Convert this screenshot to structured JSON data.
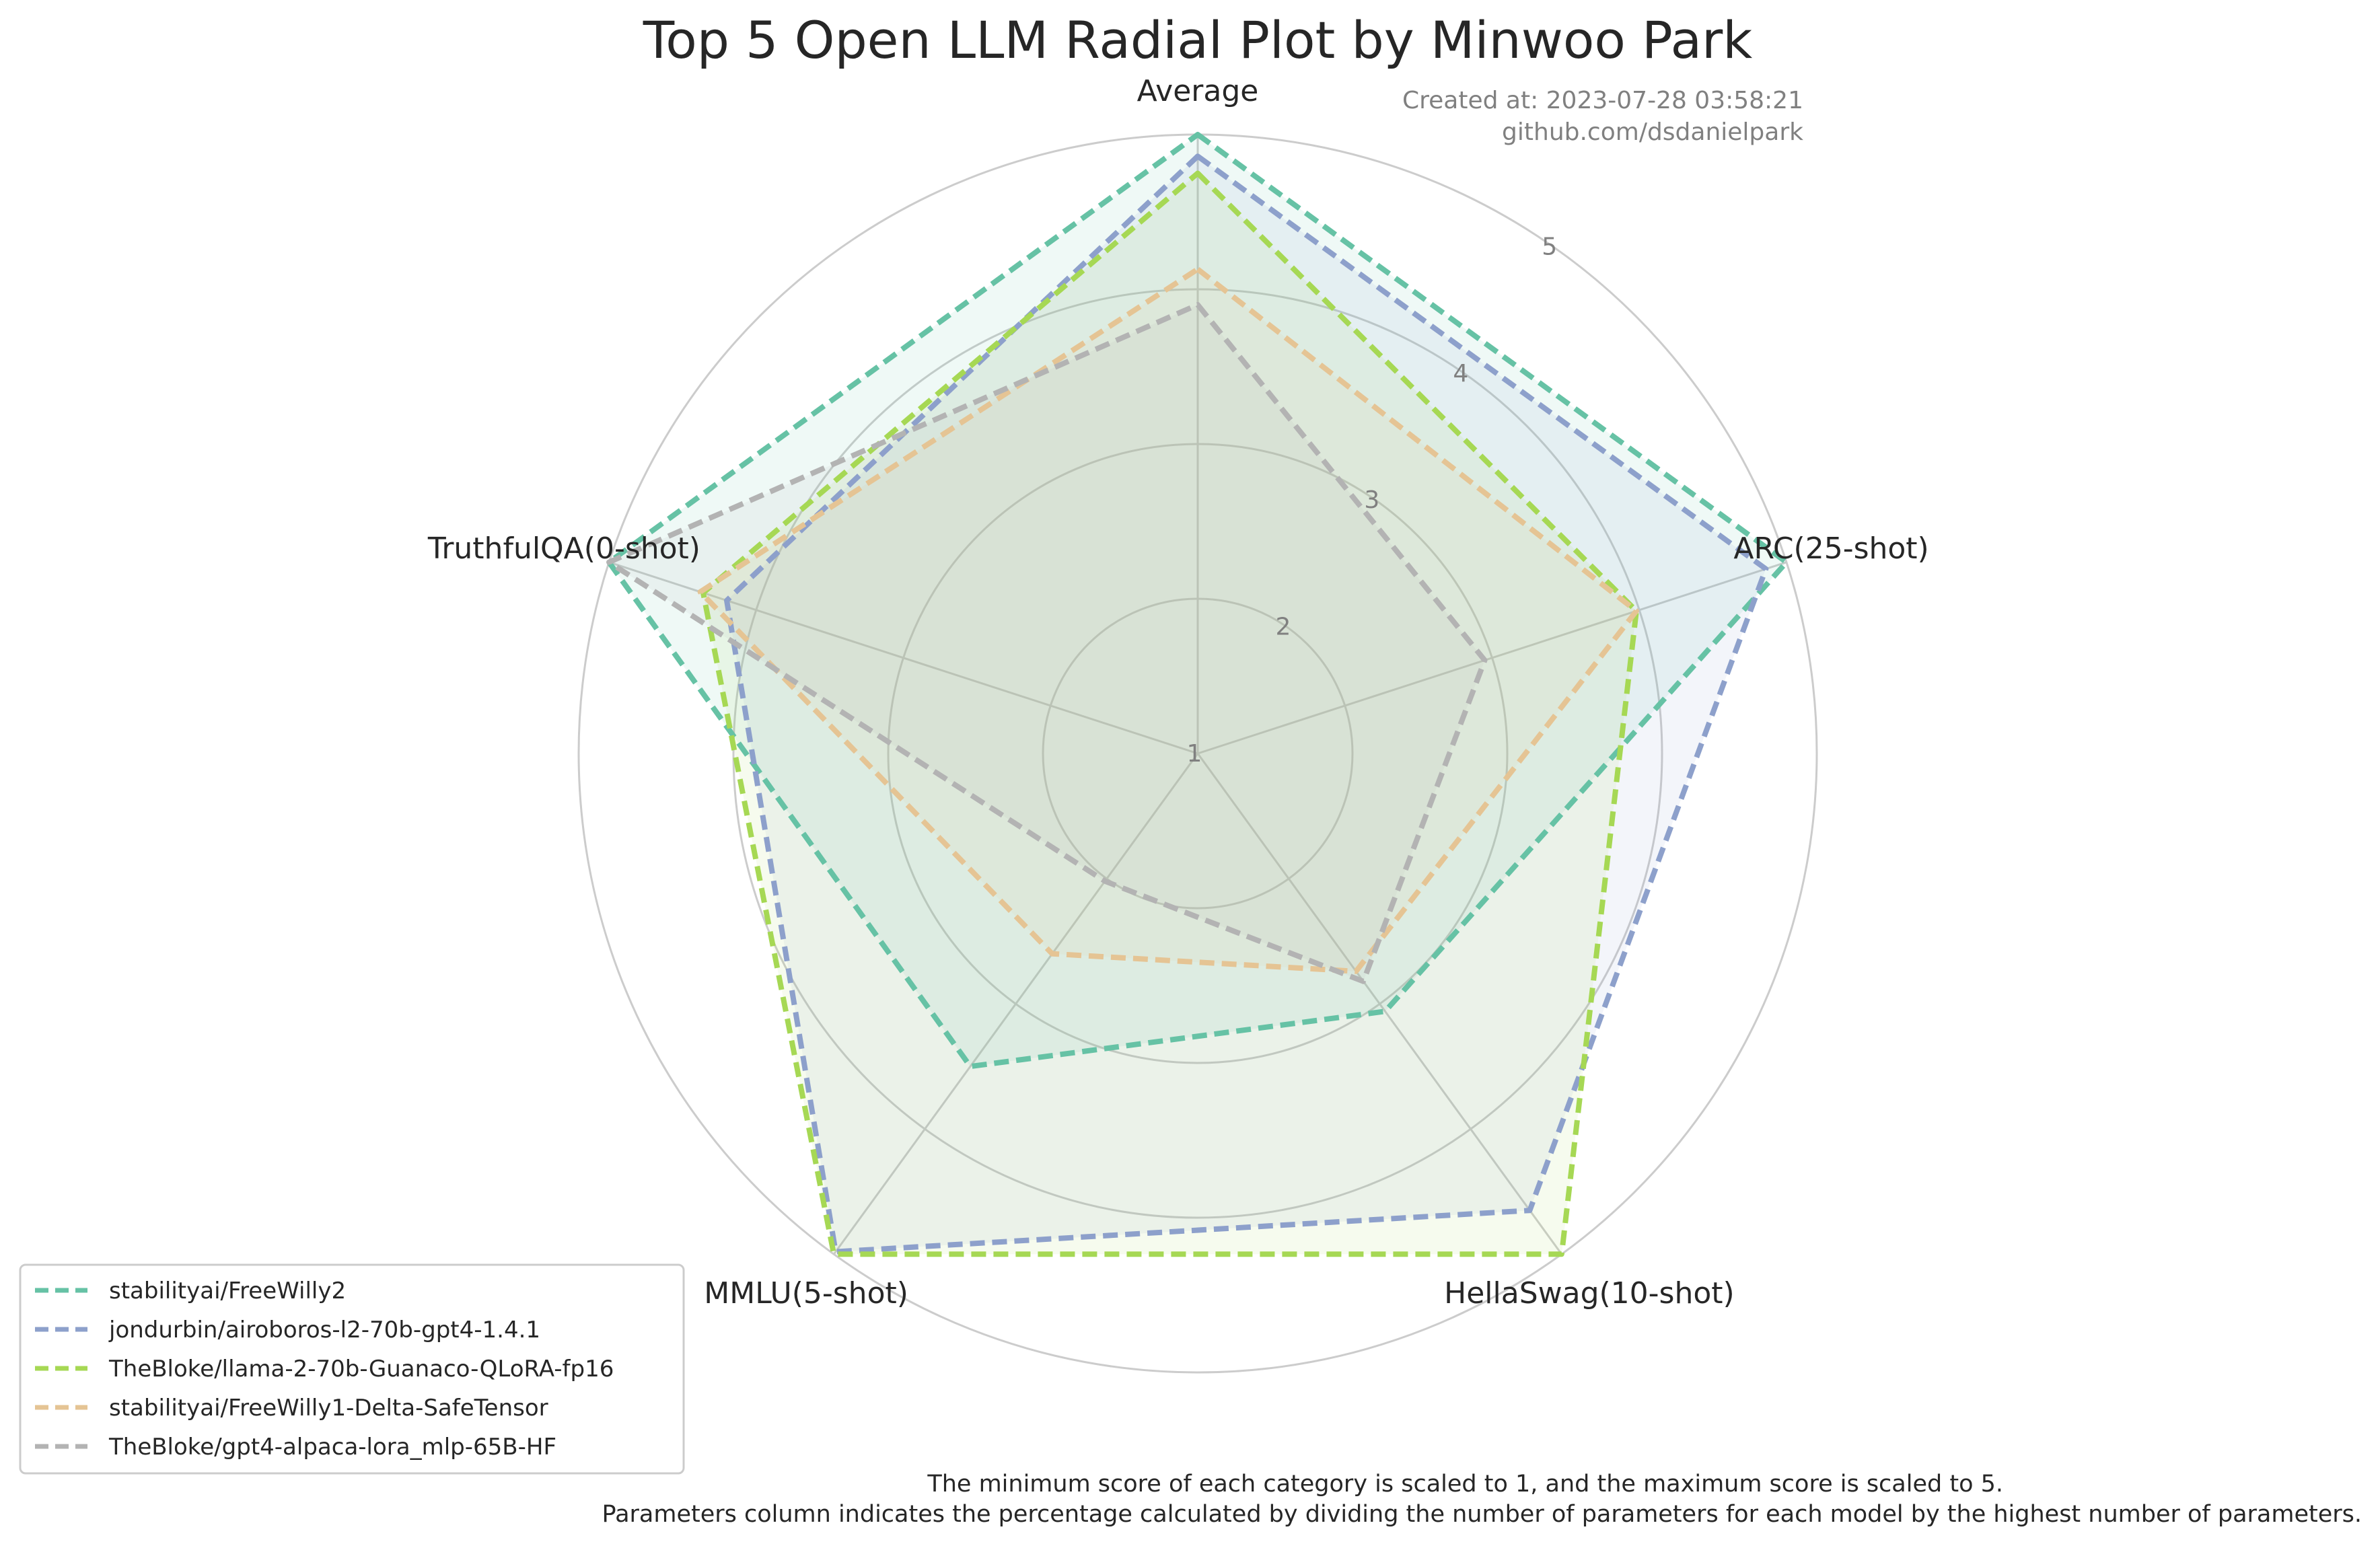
{
  "chart_data": {
    "type": "radar",
    "title": "Top 5 Open LLM Radial Plot by Minwoo Park",
    "meta": {
      "created_at": "Created at: 2023-07-28 03:58:21",
      "github": "github.com/dsdanielpark"
    },
    "categories": [
      "Average",
      "ARC(25-shot)",
      "HellaSwag(10-shot)",
      "MMLU(5-shot)",
      "TruthfulQA(0-shot)"
    ],
    "r_ticks": [
      "1",
      "2",
      "3",
      "4",
      "5"
    ],
    "r_range": [
      1,
      5
    ],
    "grid": true,
    "legend_position": "bottom-left",
    "series": [
      {
        "name": "stabilityai/FreeWilly2",
        "color": "#66c2a5",
        "values": [
          5.0,
          5.0,
          3.06,
          3.5,
          5.0
        ]
      },
      {
        "name": "jondurbin/airoboros-l2-70b-gpt4-1.4.1",
        "color": "#8da0cb",
        "values": [
          4.86,
          4.86,
          4.65,
          4.98,
          4.2
        ]
      },
      {
        "name": "TheBloke/llama-2-70b-Guanaco-QLoRA-fp16",
        "color": "#a6d854",
        "values": [
          4.75,
          3.98,
          5.0,
          5.0,
          4.36
        ]
      },
      {
        "name": "stabilityai/FreeWilly1-Delta-SafeTensor",
        "color": "#e5c494",
        "values": [
          4.13,
          3.98,
          2.74,
          2.6,
          4.38
        ]
      },
      {
        "name": "TheBloke/gpt4-alpaca-lora_mlp-65B-HF",
        "color": "#b3b3b3",
        "values": [
          3.9,
          2.95,
          2.82,
          2.02,
          5.0
        ]
      }
    ],
    "footnote": [
      "The minimum score of each category is scaled to 1, and the maximum score is scaled to 5.",
      "Parameters column indicates the percentage calculated by dividing the number of parameters for each model by the highest number of parameters."
    ]
  }
}
